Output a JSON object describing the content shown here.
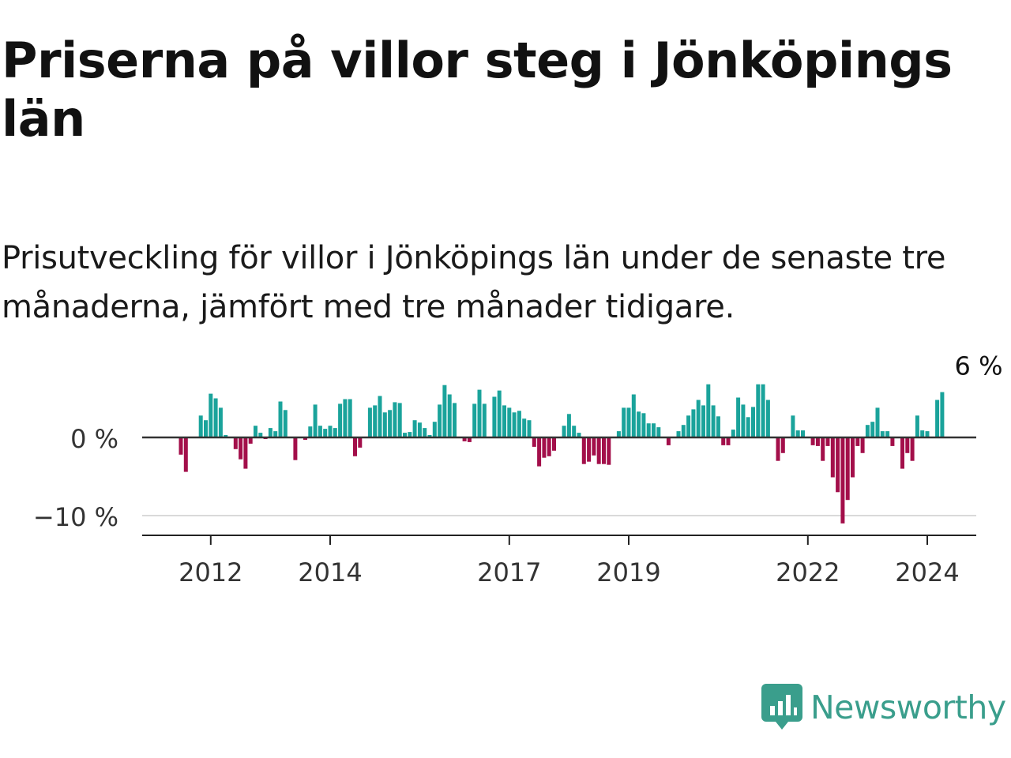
{
  "title": "Priserna på villor steg i Jönköpings län",
  "subtitle": "Prisutveckling för villor i Jönköpings län under de senaste tre månaderna, jämfört med tre månader tidigare.",
  "logo": {
    "text": "Newsworthy",
    "icon": "newsworthy-logo-icon",
    "color": "#3a9e8c"
  },
  "colors": {
    "positive": "#1aa39b",
    "negative": "#a30f4a",
    "zero_line": "#333333",
    "grid": "#d9d9d9",
    "axis": "#222222"
  },
  "chart_data": {
    "type": "bar",
    "x_start": "2011-07",
    "frequency": "monthly",
    "ylabel": "",
    "xlabel": "",
    "ylim": [
      -12,
      7
    ],
    "yticks": [
      {
        "value": 0,
        "label": "0 %"
      },
      {
        "value": -10,
        "label": "−10 %"
      }
    ],
    "xticks": [
      {
        "index": 6,
        "label": "2012"
      },
      {
        "index": 30,
        "label": "2014"
      },
      {
        "index": 66,
        "label": "2017"
      },
      {
        "index": 90,
        "label": "2019"
      },
      {
        "index": 126,
        "label": "2022"
      },
      {
        "index": 150,
        "label": "2024"
      }
    ],
    "annotation": {
      "label": "6 %",
      "value": 6,
      "index": 160
    },
    "values": [
      -2.2,
      -4.4,
      0,
      0,
      2.8,
      2.2,
      5.6,
      5.0,
      3.8,
      0.3,
      0,
      -1.5,
      -2.8,
      -4.0,
      -0.8,
      1.5,
      0.6,
      -0.2,
      1.2,
      0.8,
      4.6,
      3.5,
      0,
      -2.9,
      0,
      -0.3,
      1.4,
      4.2,
      1.5,
      1.1,
      1.5,
      1.2,
      4.3,
      4.9,
      4.9,
      -2.4,
      -1.3,
      0,
      3.8,
      4.1,
      5.3,
      3.2,
      3.5,
      4.5,
      4.4,
      0.6,
      0.7,
      2.2,
      1.9,
      1.2,
      0.3,
      2.0,
      4.2,
      6.7,
      5.5,
      4.4,
      0,
      -0.5,
      -0.6,
      4.3,
      6.1,
      4.3,
      0,
      5.2,
      6.0,
      4.1,
      3.8,
      3.2,
      3.4,
      2.4,
      2.2,
      -1.2,
      -3.7,
      -2.6,
      -2.4,
      -1.7,
      0,
      1.5,
      3.0,
      1.5,
      0.6,
      -3.4,
      -3.1,
      -2.3,
      -3.4,
      -3.4,
      -3.5,
      0,
      0.8,
      3.8,
      3.8,
      5.5,
      3.3,
      3.1,
      1.8,
      1.8,
      1.3,
      0,
      -1.0,
      0,
      0.8,
      1.6,
      2.8,
      3.6,
      4.8,
      4.1,
      6.8,
      4.1,
      2.7,
      -1.0,
      -1.0,
      1.0,
      5.1,
      4.2,
      2.6,
      3.9,
      6.8,
      6.8,
      4.8,
      0,
      -3.0,
      -2.0,
      0,
      2.8,
      0.9,
      0.9,
      0,
      -1.0,
      -1.1,
      -3.0,
      -1.1,
      -5.1,
      -7.0,
      -11.0,
      -8.0,
      -5.1,
      -1.1,
      -2.0,
      1.6,
      2.0,
      3.8,
      0.8,
      0.8,
      -1.1,
      0,
      -4.0,
      -2.0,
      -3.0,
      2.8,
      0.9,
      0.8,
      0,
      4.8,
      5.8
    ]
  }
}
